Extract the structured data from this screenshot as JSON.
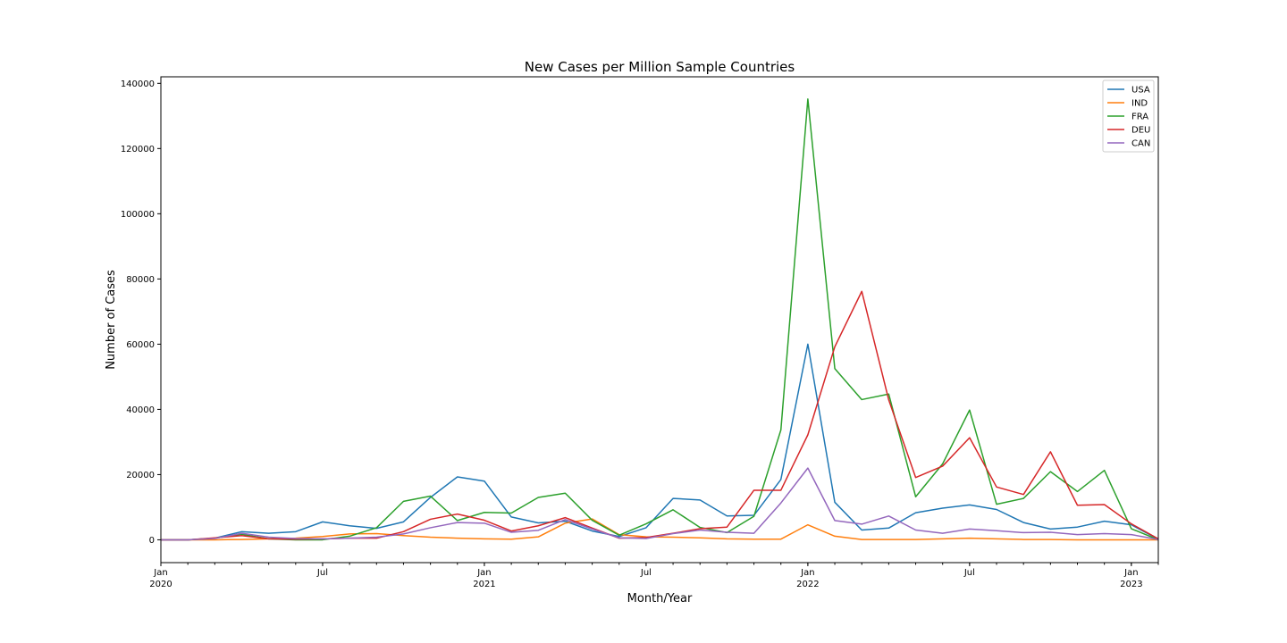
{
  "chart_data": {
    "type": "line",
    "title": "New Cases per Million Sample Countries",
    "xlabel": "Month/Year",
    "ylabel": "Number of Cases",
    "ylim": [
      -7000,
      142000
    ],
    "xlim": [
      "2020-01",
      "2023-02"
    ],
    "yticks": [
      0,
      20000,
      40000,
      60000,
      80000,
      100000,
      120000,
      140000
    ],
    "xticks": [
      {
        "x": "2020-01",
        "label": "Jan",
        "year": "2020"
      },
      {
        "x": "2020-07",
        "label": "Jul",
        "year": ""
      },
      {
        "x": "2021-01",
        "label": "Jan",
        "year": "2021"
      },
      {
        "x": "2021-07",
        "label": "Jul",
        "year": ""
      },
      {
        "x": "2022-01",
        "label": "Jan",
        "year": "2022"
      },
      {
        "x": "2022-07",
        "label": "Jul",
        "year": ""
      },
      {
        "x": "2023-01",
        "label": "Jan",
        "year": "2023"
      }
    ],
    "grid": false,
    "legend_position": "top-right",
    "x": [
      "2020-01",
      "2020-02",
      "2020-03",
      "2020-04",
      "2020-05",
      "2020-06",
      "2020-07",
      "2020-08",
      "2020-09",
      "2020-10",
      "2020-11",
      "2020-12",
      "2021-01",
      "2021-02",
      "2021-03",
      "2021-04",
      "2021-05",
      "2021-06",
      "2021-07",
      "2021-08",
      "2021-09",
      "2021-10",
      "2021-11",
      "2021-12",
      "2022-01",
      "2022-02",
      "2022-03",
      "2022-04",
      "2022-05",
      "2022-06",
      "2022-07",
      "2022-08",
      "2022-09",
      "2022-10",
      "2022-11",
      "2022-12",
      "2023-01",
      "2023-02"
    ],
    "series": [
      {
        "name": "USA",
        "color": "#1f77b4",
        "values": [
          0,
          0,
          500,
          2500,
          2000,
          2500,
          5500,
          4300,
          3500,
          5500,
          13000,
          19300,
          18000,
          7000,
          5200,
          5700,
          2700,
          1000,
          3700,
          12700,
          12200,
          7300,
          7500,
          18500,
          60000,
          11500,
          3000,
          3600,
          8300,
          9700,
          10700,
          9300,
          5300,
          3300,
          3900,
          5700,
          4600,
          200
        ]
      },
      {
        "name": "IND",
        "color": "#ff7f0e",
        "values": [
          0,
          0,
          0,
          100,
          300,
          500,
          1000,
          1800,
          1900,
          1300,
          800,
          500,
          300,
          200,
          900,
          5100,
          6400,
          1600,
          900,
          800,
          600,
          300,
          200,
          200,
          4600,
          1100,
          100,
          100,
          100,
          300,
          500,
          300,
          100,
          100,
          0,
          0,
          0,
          0
        ]
      },
      {
        "name": "FRA",
        "color": "#2ca02c",
        "values": [
          0,
          0,
          500,
          1700,
          300,
          0,
          0,
          1100,
          3700,
          11800,
          13400,
          5900,
          8400,
          8200,
          13000,
          14300,
          6000,
          1400,
          4900,
          9200,
          3800,
          2200,
          7200,
          33700,
          135200,
          52500,
          43000,
          44700,
          13200,
          23300,
          39800,
          10900,
          12700,
          20900,
          14800,
          21300,
          3400,
          0
        ]
      },
      {
        "name": "DEU",
        "color": "#d62728",
        "values": [
          0,
          0,
          600,
          1300,
          300,
          200,
          300,
          500,
          500,
          2500,
          6300,
          7900,
          6000,
          2700,
          4300,
          6800,
          3600,
          500,
          700,
          2000,
          3400,
          3900,
          15200,
          15200,
          32200,
          59200,
          76200,
          42900,
          19100,
          22600,
          31300,
          16200,
          13900,
          27000,
          10600,
          10800,
          4900,
          300
        ]
      },
      {
        "name": "CAN",
        "color": "#9467bd",
        "values": [
          0,
          0,
          400,
          2000,
          800,
          400,
          300,
          500,
          800,
          1800,
          3700,
          5300,
          5100,
          2300,
          2900,
          6200,
          3300,
          600,
          400,
          1900,
          3000,
          2300,
          2000,
          11300,
          22000,
          5900,
          4800,
          7300,
          3000,
          2000,
          3300,
          2800,
          2200,
          2300,
          1600,
          1900,
          1600,
          100
        ]
      }
    ]
  }
}
